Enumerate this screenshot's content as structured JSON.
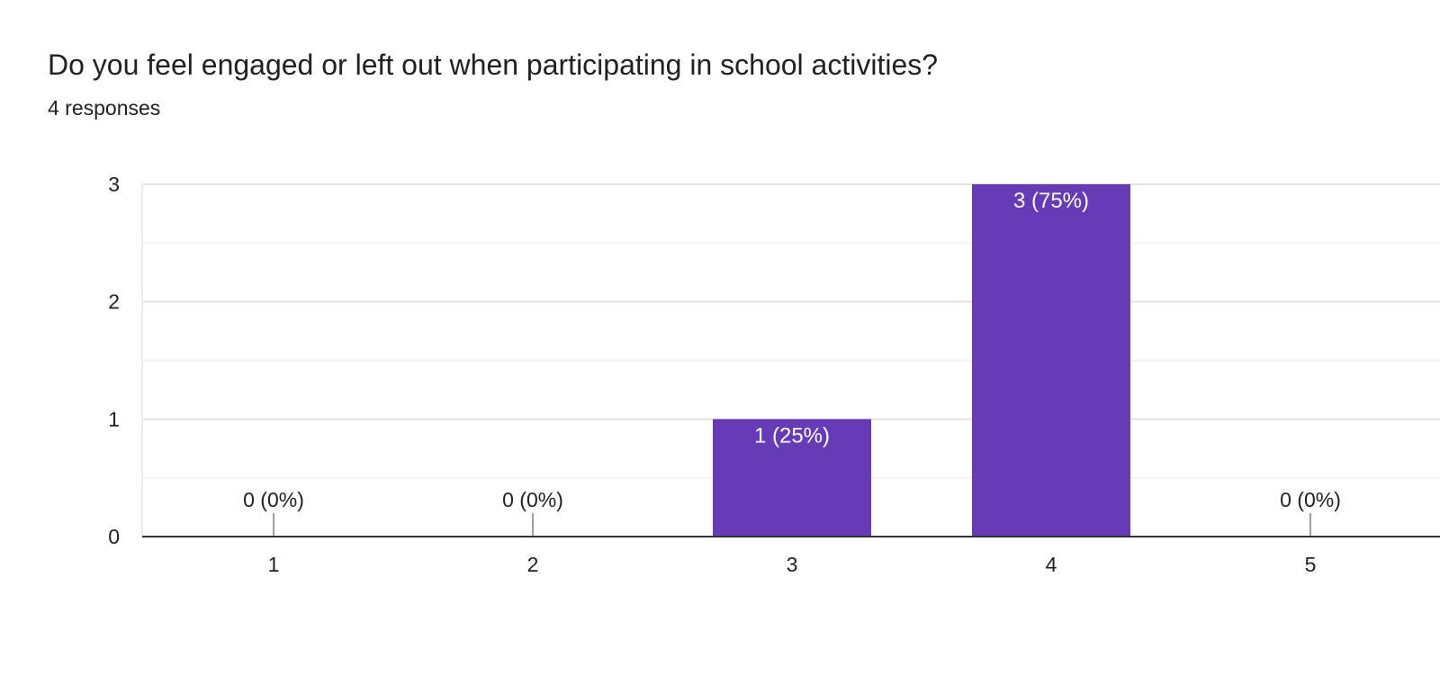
{
  "question": {
    "title": "Do you feel engaged or left out when participating in school activities?",
    "responses": "4 responses"
  },
  "colors": {
    "bar": "#673ab7",
    "grid": "#ececec",
    "axis": "#333333",
    "text": "#202124",
    "bar_label": "#ffffff",
    "zero_tick": "#9e9e9e"
  },
  "chart_data": {
    "type": "bar",
    "categories": [
      "1",
      "2",
      "3",
      "4",
      "5"
    ],
    "values": [
      0,
      0,
      1,
      3,
      0
    ],
    "value_labels": [
      "0 (0%)",
      "0 (0%)",
      "1 (25%)",
      "3 (75%)",
      "0 (0%)"
    ],
    "ylim": [
      0,
      3
    ],
    "yticks": [
      "0",
      "1",
      "2",
      "3"
    ],
    "grid": true,
    "title": "",
    "xlabel": "",
    "ylabel": ""
  }
}
